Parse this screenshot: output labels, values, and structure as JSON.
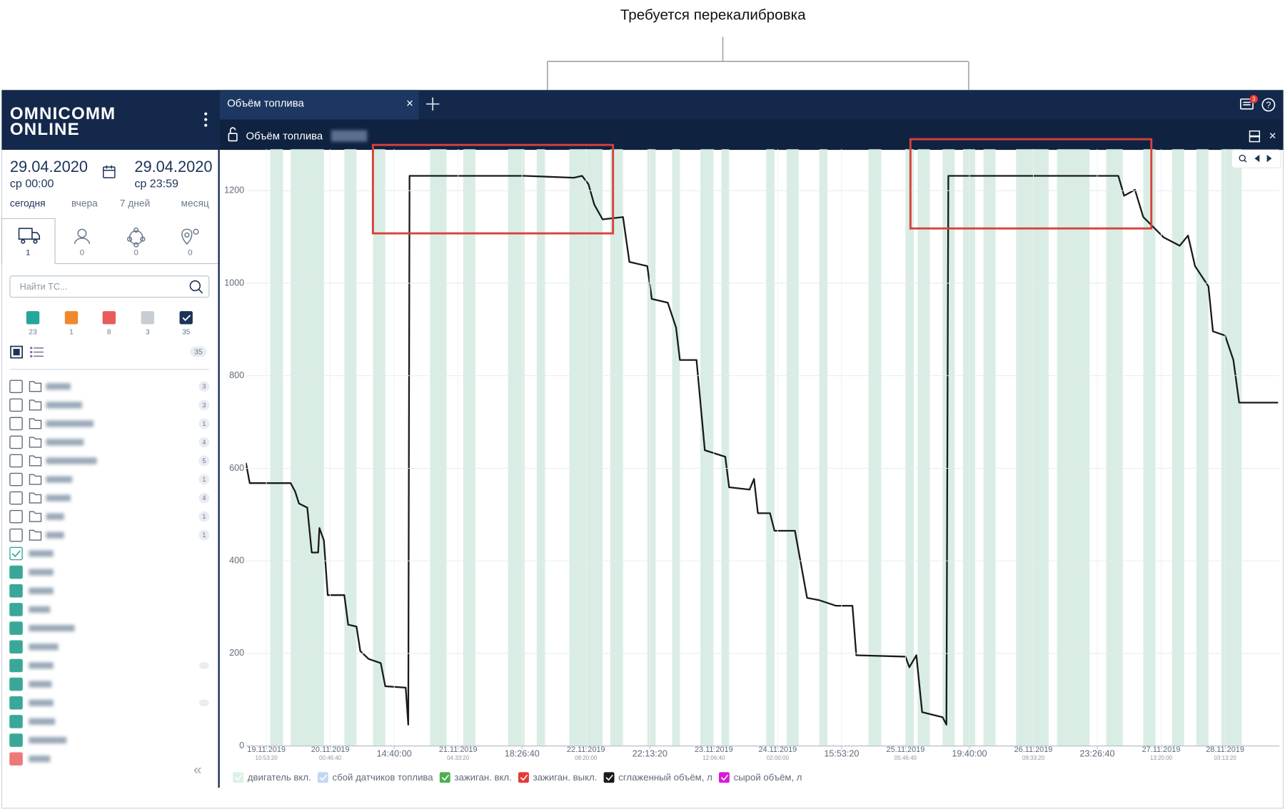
{
  "annotation": {
    "text": "Требуется перекалибровка"
  },
  "app": {
    "logo": [
      "OMNICOMM",
      "ONLINE"
    ],
    "tab": "Объём топлива",
    "panel_title": "Объём топлива",
    "notifications": 3
  },
  "sidebar": {
    "date_from": "29.04.2020",
    "time_from": "ср 00:00",
    "date_to": "29.04.2020",
    "time_to": "ср 23:59",
    "periods": [
      "сегодня",
      "вчера",
      "7 дней",
      "месяц"
    ],
    "tab_counts": [
      1,
      0,
      0,
      0
    ],
    "search_placeholder": "Найти ТС...",
    "status_filters": [
      {
        "color": "#26a69a",
        "count": 23
      },
      {
        "color": "#f0892e",
        "count": 1
      },
      {
        "color": "#e95c5c",
        "count": 8
      },
      {
        "color": "#c8cdd3",
        "count": 3
      },
      {
        "color": "#1b3358",
        "count": 35
      }
    ],
    "total": 35,
    "group_counts": [
      3,
      3,
      1,
      4,
      5,
      1,
      4,
      1,
      1
    ]
  },
  "chart_data": {
    "type": "line",
    "ylim": [
      0,
      1290
    ],
    "yticks": [
      0,
      200,
      400,
      600,
      800,
      1000,
      1200
    ],
    "xlim": [
      -0.32,
      15.85
    ],
    "xticks": [
      {
        "value": 0,
        "label": "19.11.2019",
        "time": "10:53:20"
      },
      {
        "value": 1,
        "label": "20.11.2019",
        "time": "00:46:40"
      },
      {
        "value": 2,
        "label": "14:40:00"
      },
      {
        "value": 3,
        "label": "21.11.2019",
        "time": "04:33:20"
      },
      {
        "value": 4,
        "label": "18:26:40"
      },
      {
        "value": 5,
        "label": "22.11.2019",
        "time": "08:20:00"
      },
      {
        "value": 6,
        "label": "22:13:20"
      },
      {
        "value": 7,
        "label": "23.11.2019",
        "time": "12:06:40"
      },
      {
        "value": 8,
        "label": "24.11.2019",
        "time": "02:00:00"
      },
      {
        "value": 9,
        "label": "15:53:20"
      },
      {
        "value": 10,
        "label": "25.11.2019",
        "time": "05:46:40"
      },
      {
        "value": 11,
        "label": "19:40:00"
      },
      {
        "value": 12,
        "label": "26.11.2019",
        "time": "09:33:20"
      },
      {
        "value": 13,
        "label": "23:26:40"
      },
      {
        "value": 14,
        "label": "27.11.2019",
        "time": "13:20:00"
      },
      {
        "value": 15,
        "label": "28.11.2019",
        "time": "03:13:20"
      }
    ],
    "grid": true,
    "x": [
      -0.32,
      -0.26,
      0.38,
      0.45,
      0.51,
      0.64,
      0.71,
      0.81,
      0.83,
      0.9,
      0.96,
      1.22,
      1.28,
      1.41,
      1.47,
      1.6,
      1.79,
      1.86,
      2.18,
      2.22,
      2.24,
      4.04,
      4.81,
      4.94,
      5.04,
      5.13,
      5.26,
      5.58,
      5.68,
      5.96,
      6.03,
      6.28,
      6.41,
      6.47,
      6.73,
      6.86,
      7.18,
      7.24,
      7.56,
      7.63,
      7.69,
      7.88,
      7.95,
      8.27,
      8.46,
      8.65,
      8.91,
      9.17,
      9.23,
      10.0,
      10.06,
      10.17,
      10.26,
      10.58,
      10.64,
      10.67,
      13.33,
      13.42,
      13.59,
      13.72,
      14.04,
      14.29,
      14.42,
      14.53,
      14.74,
      14.81,
      15.0,
      15.13,
      15.22,
      15.83
    ],
    "series": [
      {
        "name": "двигатель вкл.",
        "color": "#cfe9dd",
        "intervals": [
          [
            0.06,
            0.26
          ],
          [
            0.38,
            0.9
          ],
          [
            1.22,
            1.41
          ],
          [
            1.67,
            1.86
          ],
          [
            2.56,
            2.82
          ],
          [
            3.08,
            3.27
          ],
          [
            3.78,
            4.04
          ],
          [
            4.23,
            4.36
          ],
          [
            4.74,
            5.26
          ],
          [
            5.38,
            5.58
          ],
          [
            5.96,
            6.09
          ],
          [
            6.35,
            6.47
          ],
          [
            6.79,
            6.99
          ],
          [
            7.12,
            7.24
          ],
          [
            7.82,
            7.95
          ],
          [
            8.14,
            8.33
          ],
          [
            8.65,
            8.78
          ],
          [
            9.42,
            9.62
          ],
          [
            10.0,
            10.13
          ],
          [
            10.19,
            10.38
          ],
          [
            10.58,
            10.77
          ],
          [
            10.9,
            11.09
          ],
          [
            11.22,
            11.41
          ],
          [
            11.73,
            12.24
          ],
          [
            12.37,
            12.88
          ],
          [
            13.14,
            13.4
          ],
          [
            13.72,
            13.91
          ],
          [
            14.17,
            14.36
          ],
          [
            14.55,
            14.74
          ],
          [
            14.94,
            15.26
          ]
        ]
      },
      {
        "name": "сбой датчиков топлива",
        "color": "#a9c6f0"
      },
      {
        "name": "зажиган. вкл.",
        "color": "#4caf50"
      },
      {
        "name": "зажиган. выкл.",
        "color": "#e53935"
      },
      {
        "name": "сглаженный объём, л",
        "color": "#1a1a1a",
        "values": [
          612,
          568,
          568,
          550,
          524,
          515,
          418,
          418,
          471,
          444,
          326,
          326,
          262,
          258,
          205,
          188,
          179,
          129,
          126,
          46,
          1232,
          1232,
          1228,
          1232,
          1214,
          1170,
          1138,
          1143,
          1046,
          1037,
          966,
          958,
          904,
          834,
          834,
          639,
          625,
          559,
          554,
          577,
          503,
          503,
          465,
          465,
          320,
          315,
          303,
          303,
          196,
          193,
          170,
          196,
          73,
          62,
          46,
          1232,
          1232,
          1189,
          1202,
          1143,
          1099,
          1081,
          1103,
          1037,
          993,
          896,
          887,
          834,
          742,
          742
        ]
      },
      {
        "name": "сырой объём, л",
        "color": "#d81bd8"
      }
    ]
  }
}
